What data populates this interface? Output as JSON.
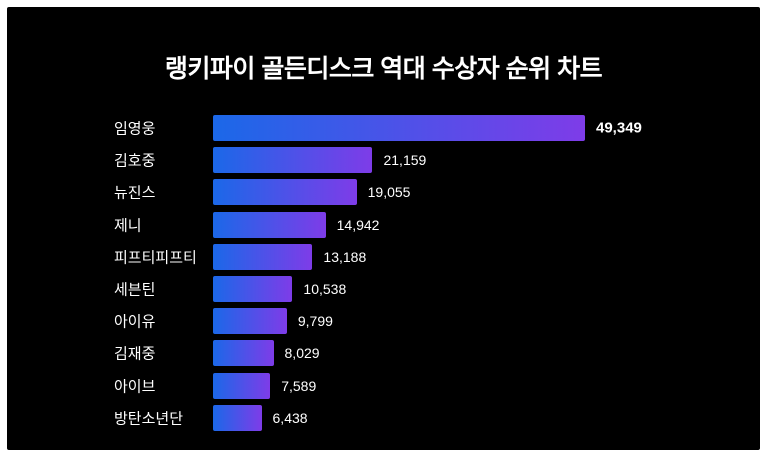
{
  "frame": {
    "outer_background": "#ffffff",
    "card_background": "#000000",
    "text_color": "#ffffff"
  },
  "chart_data": {
    "type": "bar",
    "orientation": "horizontal",
    "title": "랭키파이 골든디스크 역대 수상자 순위 차트",
    "categories": [
      "임영웅",
      "김호중",
      "뉴진스",
      "제니",
      "피프티피프티",
      "세븐틴",
      "아이유",
      "김재중",
      "아이브",
      "방탄소년단"
    ],
    "values": [
      49349,
      21159,
      19055,
      14942,
      13188,
      10538,
      9799,
      8029,
      7589,
      6438
    ],
    "value_labels": [
      "49,349",
      "21,159",
      "19,055",
      "14,942",
      "13,188",
      "10,538",
      "9,799",
      "8,029",
      "7,589",
      "6,438"
    ],
    "xlim": [
      0,
      49349
    ],
    "grid": false,
    "legend": false,
    "bar_gradient": [
      "#1b68e8",
      "#7e3ce8"
    ],
    "first_value_bold": true
  }
}
